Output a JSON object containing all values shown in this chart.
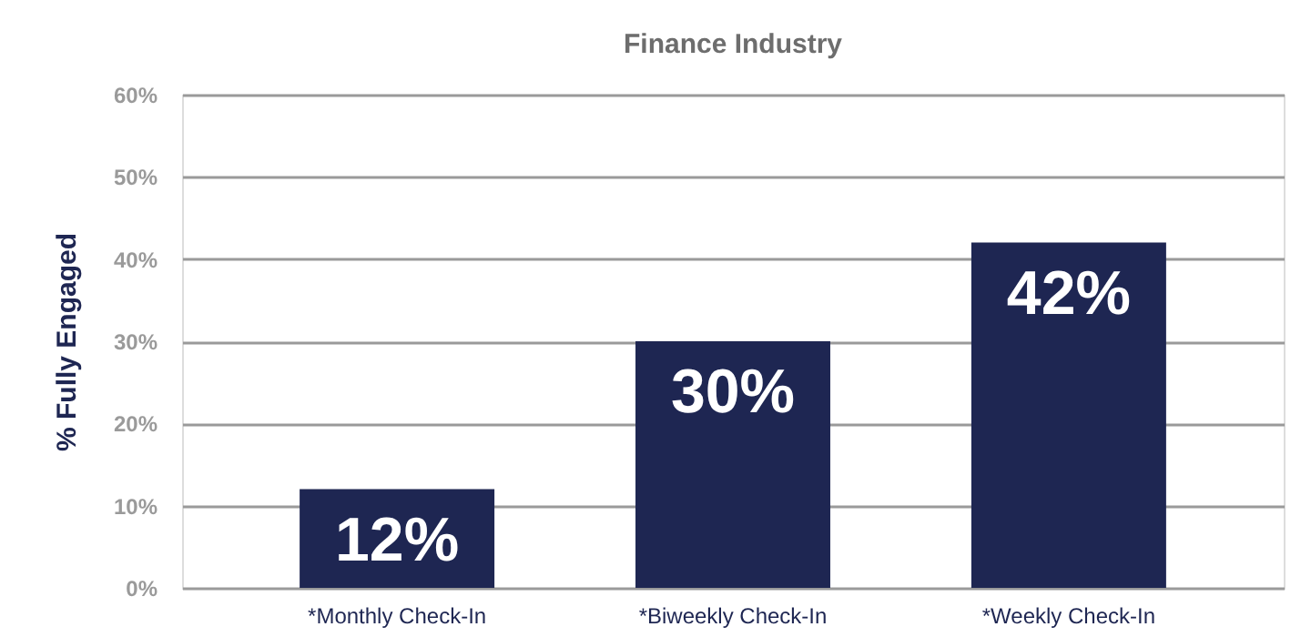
{
  "chart_data": {
    "type": "bar",
    "title": "Finance Industry",
    "ylabel": "% Fully Engaged",
    "categories": [
      "*Monthly Check-In",
      "*Biweekly Check-In",
      "*Weekly Check-In"
    ],
    "values": [
      12,
      30,
      42
    ],
    "value_labels": [
      "12%",
      "30%",
      "42%"
    ],
    "color": "#1e2652",
    "ylim": [
      0,
      60
    ],
    "yticks": [
      {
        "value": 0,
        "label": "0%"
      },
      {
        "value": 10,
        "label": "10%"
      },
      {
        "value": 20,
        "label": "20%"
      },
      {
        "value": 30,
        "label": "30%"
      },
      {
        "value": 40,
        "label": "40%"
      },
      {
        "value": 50,
        "label": "50%"
      },
      {
        "value": 60,
        "label": "60%"
      }
    ],
    "grid": "y"
  }
}
